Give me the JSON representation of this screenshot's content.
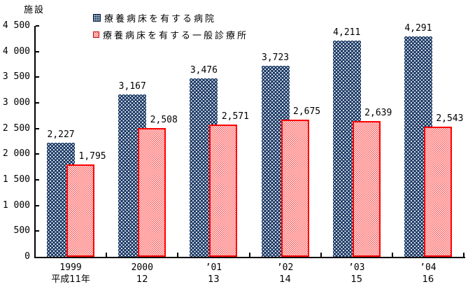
{
  "page": {
    "background": "#ffffff"
  },
  "unit_label": "施設",
  "chart_data": {
    "type": "bar",
    "title": "",
    "unit_label": "施設",
    "legend_position": "top-center",
    "grid": false,
    "ylim": [
      0,
      4500
    ],
    "ytick_step": 500,
    "ytick_labels": [
      "0",
      "500",
      "1 000",
      "1 500",
      "2 000",
      "2 500",
      "3 000",
      "3 500",
      "4 000",
      "4 500"
    ],
    "categories": [
      {
        "line1": "1999",
        "line2": "平成11年"
      },
      {
        "line1": "2000",
        "line2": "12"
      },
      {
        "line1": "’01",
        "line2": "13"
      },
      {
        "line1": "’02",
        "line2": "14"
      },
      {
        "line1": "’03",
        "line2": "15"
      },
      {
        "line1": "’04",
        "line2": "16"
      }
    ],
    "legend": [
      {
        "label": "療養病床を有する病院",
        "swatch": "navy-dotted"
      },
      {
        "label": "療養病床を有する一般診療所",
        "swatch": "red-checker"
      }
    ],
    "series": [
      {
        "name": "療養病床を有する病院",
        "color": "#1b3a67",
        "values": [
          2227,
          3167,
          3476,
          3723,
          4211,
          4291
        ],
        "labels": [
          "2,227",
          "3,167",
          "3,476",
          "3,723",
          "4,211",
          "4,291"
        ]
      },
      {
        "name": "療養病床を有する一般診療所",
        "color": "#ff0000",
        "fill": "#ff8a8a",
        "values": [
          1795,
          2508,
          2571,
          2675,
          2639,
          2543
        ],
        "labels": [
          "1,795",
          "2,508",
          "2,571",
          "2,675",
          "2,639",
          "2,543"
        ]
      }
    ],
    "colors": {
      "axis": "#000000",
      "text": "#000000"
    }
  }
}
